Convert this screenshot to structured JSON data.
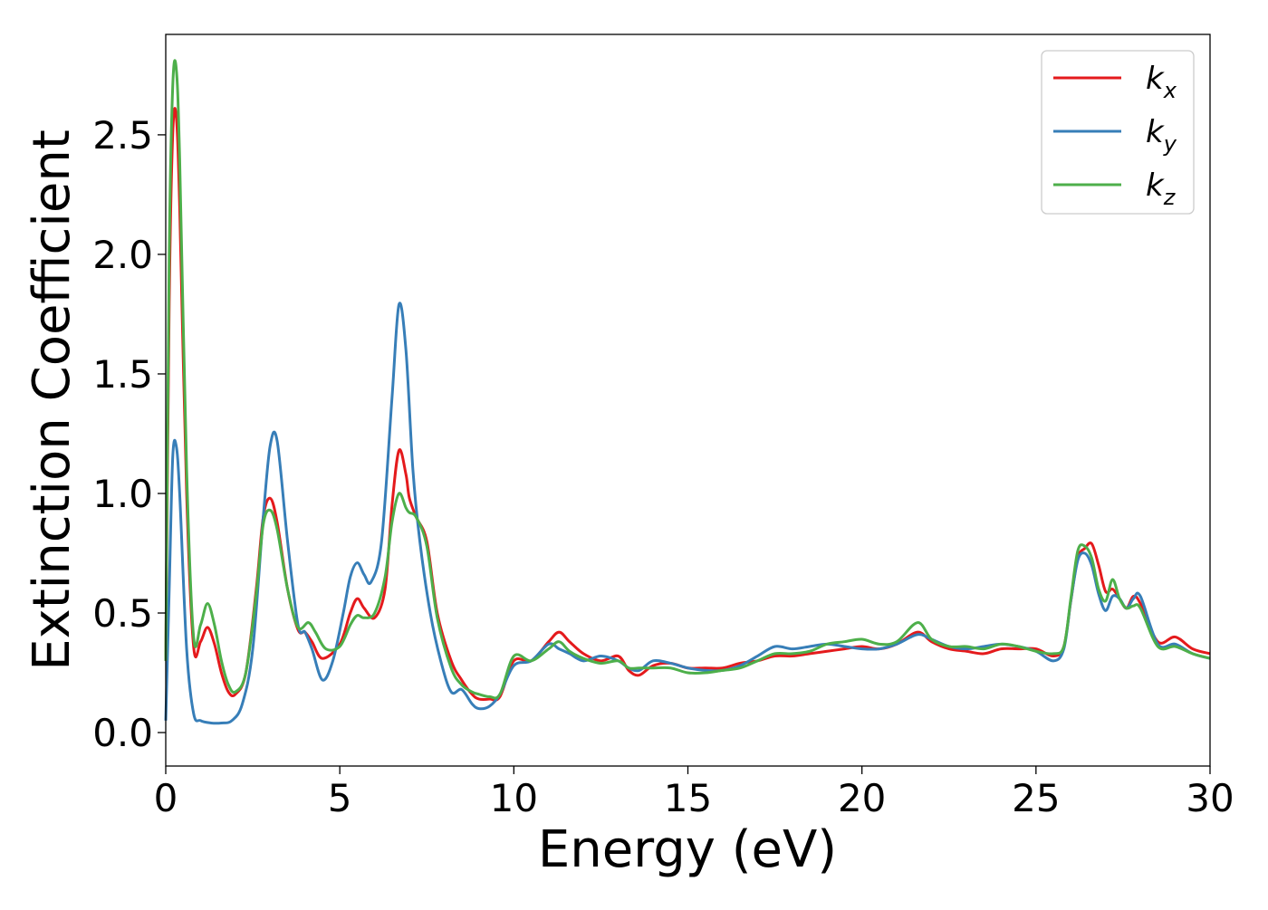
{
  "chart_data": {
    "type": "line",
    "title": "",
    "xlabel": "Energy (eV)",
    "ylabel": "Extinction Coefficient",
    "xlim": [
      0,
      30
    ],
    "ylim": [
      -0.14,
      2.92
    ],
    "xticks": [
      0,
      5,
      10,
      15,
      20,
      25,
      30
    ],
    "xtick_labels": [
      "0",
      "5",
      "10",
      "15",
      "20",
      "25",
      "30"
    ],
    "yticks": [
      0.0,
      0.5,
      1.0,
      1.5,
      2.0,
      2.5
    ],
    "ytick_labels": [
      "0.0",
      "0.5",
      "1.0",
      "1.5",
      "2.0",
      "2.5"
    ],
    "grid": false,
    "legend_position": "top-right",
    "series": [
      {
        "name": "k",
        "subscript": "x",
        "color": "#e41a1c",
        "x": [
          0,
          0.1,
          0.2,
          0.3,
          0.4,
          0.6,
          0.8,
          1.0,
          1.2,
          1.4,
          1.6,
          1.8,
          2.0,
          2.3,
          2.6,
          2.8,
          3.0,
          3.2,
          3.5,
          3.8,
          4.0,
          4.2,
          4.5,
          5.0,
          5.3,
          5.5,
          5.7,
          6.0,
          6.3,
          6.5,
          6.7,
          6.9,
          7.0,
          7.2,
          7.5,
          7.8,
          8.2,
          8.5,
          8.8,
          9.0,
          9.3,
          9.6,
          10.0,
          10.5,
          11.0,
          11.3,
          11.6,
          12.0,
          12.5,
          13.0,
          13.3,
          13.6,
          14.0,
          14.5,
          15.0,
          15.5,
          16.0,
          16.5,
          17.0,
          17.5,
          18.0,
          18.5,
          19.0,
          19.5,
          20.0,
          20.5,
          21.0,
          21.6,
          22.0,
          22.5,
          23.0,
          23.5,
          24.0,
          24.5,
          25.0,
          25.5,
          25.8,
          26.0,
          26.2,
          26.4,
          26.6,
          26.8,
          27.0,
          27.2,
          27.4,
          27.6,
          27.8,
          28.0,
          28.5,
          29.0,
          29.5,
          30.0
        ],
        "y": [
          0.3,
          1.8,
          2.5,
          2.58,
          2.2,
          1.0,
          0.36,
          0.38,
          0.44,
          0.37,
          0.25,
          0.17,
          0.16,
          0.25,
          0.6,
          0.9,
          0.98,
          0.88,
          0.6,
          0.43,
          0.42,
          0.38,
          0.31,
          0.37,
          0.5,
          0.56,
          0.52,
          0.48,
          0.6,
          0.95,
          1.18,
          1.08,
          0.98,
          0.9,
          0.8,
          0.5,
          0.3,
          0.22,
          0.16,
          0.14,
          0.14,
          0.15,
          0.3,
          0.3,
          0.38,
          0.42,
          0.38,
          0.33,
          0.3,
          0.32,
          0.26,
          0.24,
          0.28,
          0.29,
          0.27,
          0.27,
          0.27,
          0.29,
          0.3,
          0.32,
          0.32,
          0.33,
          0.34,
          0.35,
          0.36,
          0.35,
          0.37,
          0.42,
          0.38,
          0.35,
          0.34,
          0.33,
          0.35,
          0.35,
          0.35,
          0.32,
          0.36,
          0.55,
          0.73,
          0.77,
          0.79,
          0.7,
          0.59,
          0.6,
          0.56,
          0.52,
          0.57,
          0.54,
          0.38,
          0.4,
          0.35,
          0.33
        ]
      },
      {
        "name": "k",
        "subscript": "y",
        "color": "#377eb8",
        "x": [
          0,
          0.1,
          0.2,
          0.3,
          0.4,
          0.6,
          0.8,
          1.0,
          1.3,
          1.6,
          1.9,
          2.2,
          2.5,
          2.8,
          3.0,
          3.2,
          3.5,
          3.8,
          4.0,
          4.2,
          4.5,
          4.8,
          5.1,
          5.3,
          5.5,
          5.7,
          5.9,
          6.2,
          6.5,
          6.7,
          6.9,
          7.1,
          7.3,
          7.6,
          7.9,
          8.2,
          8.5,
          8.8,
          9.0,
          9.3,
          9.6,
          10.0,
          10.5,
          11.0,
          11.3,
          11.6,
          12.0,
          12.5,
          13.0,
          13.3,
          13.6,
          14.0,
          14.5,
          15.0,
          15.5,
          16.0,
          16.5,
          17.0,
          17.5,
          18.0,
          18.5,
          19.0,
          19.5,
          20.0,
          20.5,
          21.0,
          21.6,
          22.0,
          22.5,
          23.0,
          23.5,
          24.0,
          24.5,
          25.0,
          25.5,
          25.8,
          26.0,
          26.2,
          26.4,
          26.6,
          26.8,
          27.0,
          27.2,
          27.4,
          27.6,
          27.8,
          28.0,
          28.5,
          29.0,
          29.5,
          30.0
        ],
        "y": [
          0.05,
          0.6,
          1.15,
          1.2,
          1.0,
          0.35,
          0.08,
          0.05,
          0.04,
          0.04,
          0.05,
          0.12,
          0.35,
          0.9,
          1.2,
          1.22,
          0.8,
          0.45,
          0.42,
          0.35,
          0.22,
          0.3,
          0.5,
          0.65,
          0.71,
          0.66,
          0.63,
          0.8,
          1.4,
          1.79,
          1.6,
          1.1,
          0.8,
          0.5,
          0.3,
          0.17,
          0.18,
          0.12,
          0.1,
          0.11,
          0.16,
          0.28,
          0.3,
          0.37,
          0.35,
          0.33,
          0.3,
          0.32,
          0.3,
          0.27,
          0.26,
          0.3,
          0.29,
          0.27,
          0.26,
          0.26,
          0.28,
          0.32,
          0.36,
          0.35,
          0.36,
          0.37,
          0.36,
          0.35,
          0.35,
          0.37,
          0.41,
          0.39,
          0.36,
          0.35,
          0.36,
          0.37,
          0.36,
          0.34,
          0.3,
          0.35,
          0.55,
          0.72,
          0.75,
          0.7,
          0.58,
          0.51,
          0.57,
          0.56,
          0.52,
          0.56,
          0.57,
          0.37,
          0.37,
          0.33,
          0.31
        ]
      },
      {
        "name": "k",
        "subscript": "z",
        "color": "#4daf4a",
        "x": [
          0,
          0.1,
          0.2,
          0.3,
          0.4,
          0.6,
          0.8,
          1.0,
          1.2,
          1.4,
          1.6,
          1.8,
          2.0,
          2.3,
          2.6,
          2.8,
          3.0,
          3.2,
          3.5,
          3.8,
          4.1,
          4.3,
          4.6,
          5.0,
          5.3,
          5.5,
          5.7,
          6.0,
          6.3,
          6.5,
          6.7,
          6.9,
          7.0,
          7.2,
          7.5,
          7.8,
          8.2,
          8.5,
          8.8,
          9.0,
          9.3,
          9.6,
          10.0,
          10.5,
          11.0,
          11.3,
          11.6,
          12.0,
          12.5,
          13.0,
          13.3,
          13.6,
          14.0,
          14.5,
          15.0,
          15.5,
          16.0,
          16.5,
          17.0,
          17.5,
          18.0,
          18.5,
          19.0,
          19.5,
          20.0,
          20.5,
          21.0,
          21.6,
          22.0,
          22.5,
          23.0,
          23.5,
          24.0,
          24.5,
          25.0,
          25.5,
          25.8,
          26.0,
          26.2,
          26.4,
          26.6,
          26.8,
          27.0,
          27.2,
          27.4,
          27.6,
          27.8,
          28.0,
          28.5,
          29.0,
          29.5,
          30.0
        ],
        "y": [
          0.3,
          2.0,
          2.7,
          2.78,
          2.4,
          1.1,
          0.4,
          0.45,
          0.54,
          0.45,
          0.3,
          0.2,
          0.17,
          0.25,
          0.58,
          0.87,
          0.93,
          0.85,
          0.6,
          0.44,
          0.46,
          0.42,
          0.35,
          0.36,
          0.45,
          0.49,
          0.48,
          0.5,
          0.65,
          0.88,
          1.0,
          0.94,
          0.92,
          0.9,
          0.78,
          0.48,
          0.27,
          0.2,
          0.17,
          0.16,
          0.15,
          0.16,
          0.32,
          0.3,
          0.35,
          0.38,
          0.34,
          0.31,
          0.29,
          0.3,
          0.27,
          0.27,
          0.27,
          0.27,
          0.25,
          0.25,
          0.26,
          0.27,
          0.3,
          0.33,
          0.33,
          0.34,
          0.37,
          0.38,
          0.39,
          0.37,
          0.38,
          0.46,
          0.39,
          0.36,
          0.36,
          0.35,
          0.37,
          0.36,
          0.34,
          0.33,
          0.36,
          0.56,
          0.76,
          0.78,
          0.73,
          0.6,
          0.55,
          0.64,
          0.56,
          0.52,
          0.53,
          0.52,
          0.36,
          0.36,
          0.33,
          0.31
        ]
      }
    ]
  }
}
